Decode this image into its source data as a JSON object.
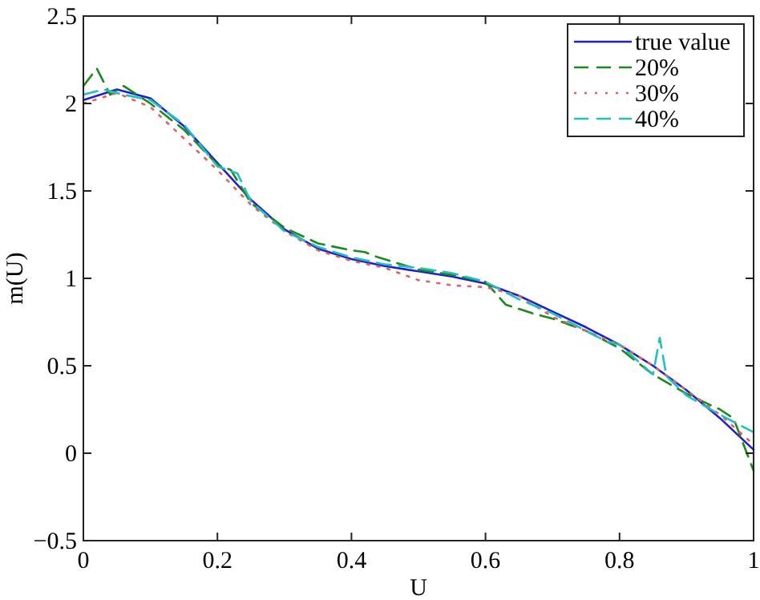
{
  "chart_data": {
    "type": "line",
    "xlabel": "U",
    "ylabel": "m(U)",
    "xlim": [
      0,
      1
    ],
    "ylim": [
      -0.5,
      2.5
    ],
    "xticks": [
      0,
      0.2,
      0.4,
      0.6,
      0.8,
      1
    ],
    "yticks": [
      -0.5,
      0,
      0.5,
      1,
      1.5,
      2,
      2.5
    ],
    "grid": false,
    "legend": "top right",
    "x": [
      0,
      0.05,
      0.1,
      0.15,
      0.2,
      0.25,
      0.3,
      0.35,
      0.4,
      0.45,
      0.5,
      0.55,
      0.6,
      0.65,
      0.7,
      0.75,
      0.8,
      0.85,
      0.9,
      0.95,
      1
    ],
    "series": [
      {
        "name": "true value",
        "color": "#1f1fd0",
        "line_style": "solid",
        "values": [
          2.02,
          2.08,
          2.03,
          1.87,
          1.66,
          1.45,
          1.28,
          1.17,
          1.11,
          1.07,
          1.04,
          1.01,
          0.97,
          0.9,
          0.81,
          0.72,
          0.62,
          0.5,
          0.36,
          0.2,
          0.02
        ]
      },
      {
        "name": "20%",
        "color": "#1a8a1a",
        "line_style": "dashed",
        "x": [
          0,
          0.02,
          0.04,
          0.06,
          0.1,
          0.15,
          0.2,
          0.22,
          0.25,
          0.3,
          0.35,
          0.4,
          0.42,
          0.44,
          0.5,
          0.55,
          0.6,
          0.63,
          0.67,
          0.7,
          0.75,
          0.8,
          0.85,
          0.9,
          0.95,
          0.97,
          0.99,
          1
        ],
        "values": [
          2.1,
          2.2,
          2.05,
          2.1,
          2.0,
          1.85,
          1.65,
          1.62,
          1.43,
          1.29,
          1.2,
          1.16,
          1.15,
          1.12,
          1.05,
          1.02,
          0.98,
          0.85,
          0.8,
          0.77,
          0.7,
          0.6,
          0.45,
          0.34,
          0.25,
          0.2,
          0.0,
          -0.1
        ]
      },
      {
        "name": "30%",
        "color": "#e06060",
        "line_style": "dotted",
        "x": [
          0,
          0.05,
          0.1,
          0.15,
          0.2,
          0.25,
          0.3,
          0.35,
          0.4,
          0.45,
          0.5,
          0.55,
          0.6,
          0.65,
          0.7,
          0.75,
          0.8,
          0.85,
          0.9,
          0.95,
          1
        ],
        "values": [
          2.0,
          2.06,
          1.98,
          1.8,
          1.62,
          1.42,
          1.27,
          1.16,
          1.1,
          1.06,
          0.99,
          0.96,
          0.95,
          0.9,
          0.78,
          0.7,
          0.62,
          0.5,
          0.36,
          0.22,
          0.05
        ]
      },
      {
        "name": "40%",
        "color": "#20c0c0",
        "line_style": "dashed",
        "x": [
          0,
          0.03,
          0.06,
          0.1,
          0.15,
          0.2,
          0.23,
          0.25,
          0.3,
          0.35,
          0.4,
          0.45,
          0.5,
          0.55,
          0.6,
          0.65,
          0.7,
          0.75,
          0.78,
          0.8,
          0.85,
          0.86,
          0.87,
          0.9,
          0.95,
          1
        ],
        "values": [
          2.05,
          2.08,
          2.05,
          2.02,
          1.88,
          1.64,
          1.6,
          1.44,
          1.27,
          1.18,
          1.12,
          1.08,
          1.06,
          1.03,
          0.98,
          0.88,
          0.8,
          0.7,
          0.64,
          0.62,
          0.45,
          0.66,
          0.44,
          0.33,
          0.22,
          0.12
        ]
      }
    ]
  }
}
